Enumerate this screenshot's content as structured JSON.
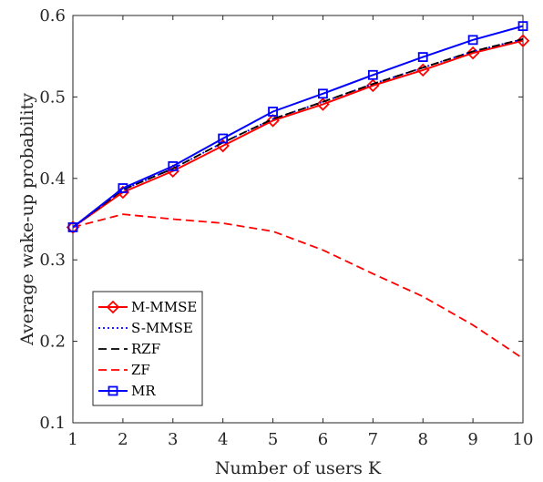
{
  "chart_data": {
    "type": "line",
    "title": "",
    "xlabel": "Number of users K",
    "ylabel": "Average wake-up probability",
    "xlim": [
      1,
      10
    ],
    "ylim": [
      0.1,
      0.6
    ],
    "x": [
      1,
      2,
      3,
      4,
      5,
      6,
      7,
      8,
      9,
      10
    ],
    "xticks": [
      "1",
      "2",
      "3",
      "4",
      "5",
      "6",
      "7",
      "8",
      "9",
      "10"
    ],
    "yticks": [
      "0.1",
      "0.2",
      "0.3",
      "0.4",
      "0.5",
      "0.6"
    ],
    "ytick_values": [
      0.1,
      0.2,
      0.3,
      0.4,
      0.5,
      0.6
    ],
    "grid": false,
    "legend_position": "bottom-left",
    "series": [
      {
        "name": "M-MMSE",
        "color": "#ff0000",
        "line_style": "solid",
        "marker": "diamond",
        "values": [
          0.34,
          0.383,
          0.409,
          0.44,
          0.471,
          0.491,
          0.514,
          0.533,
          0.554,
          0.569
        ]
      },
      {
        "name": "S-MMSE",
        "color": "#0000ff",
        "line_style": "dotted",
        "marker": "none",
        "values": [
          0.34,
          0.386,
          0.412,
          0.444,
          0.473,
          0.494,
          0.516,
          0.536,
          0.556,
          0.571
        ]
      },
      {
        "name": "RZF",
        "color": "#000000",
        "line_style": "dashed",
        "marker": "none",
        "values": [
          0.34,
          0.386,
          0.412,
          0.444,
          0.473,
          0.494,
          0.516,
          0.536,
          0.556,
          0.571
        ]
      },
      {
        "name": "ZF",
        "color": "#ff0000",
        "line_style": "dashed",
        "marker": "none",
        "values": [
          0.34,
          0.356,
          0.35,
          0.345,
          0.335,
          0.312,
          0.283,
          0.255,
          0.22,
          0.179
        ]
      },
      {
        "name": "MR",
        "color": "#0000ff",
        "line_style": "solid",
        "marker": "square",
        "values": [
          0.34,
          0.388,
          0.415,
          0.449,
          0.482,
          0.504,
          0.527,
          0.549,
          0.57,
          0.587
        ]
      }
    ]
  }
}
